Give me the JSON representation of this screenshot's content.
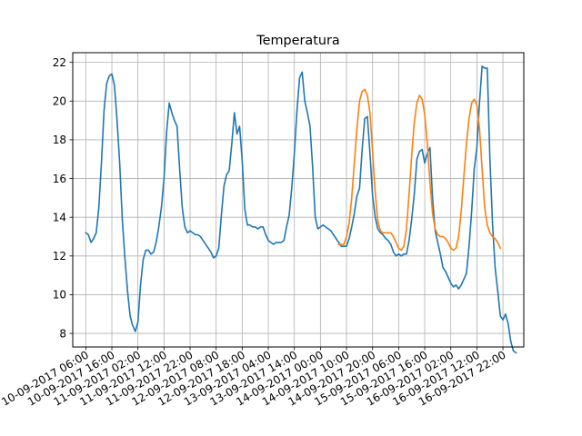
{
  "chart_data": {
    "type": "line",
    "title": "Temperatura",
    "xlabel": "",
    "ylabel": "",
    "grid": true,
    "x_tick_labels": [
      "10-09-2017 06:00",
      "10-09-2017 16:00",
      "11-09-2017 02:00",
      "11-09-2017 12:00",
      "11-09-2017 22:00",
      "12-09-2017 08:00",
      "12-09-2017 18:00",
      "13-09-2017 04:00",
      "13-09-2017 14:00",
      "14-09-2017 00:00",
      "14-09-2017 10:00",
      "14-09-2017 20:00",
      "15-09-2017 06:00",
      "15-09-2017 16:00",
      "16-09-2017 02:00",
      "16-09-2017 12:00",
      "16-09-2017 22:00"
    ],
    "y_ticks": [
      8,
      10,
      12,
      14,
      16,
      18,
      20,
      22
    ],
    "xlim": [
      "10-09-2017 01:00",
      "17-09-2017 06:00"
    ],
    "ylim": [
      7.3,
      22.5
    ],
    "series": [
      {
        "color": "#1f77b4",
        "points": [
          [
            "10-09-2017 06:00",
            13.2
          ],
          [
            "10-09-2017 07:00",
            13.1
          ],
          [
            "10-09-2017 08:00",
            12.7
          ],
          [
            "10-09-2017 09:00",
            12.9
          ],
          [
            "10-09-2017 10:00",
            13.2
          ],
          [
            "10-09-2017 11:00",
            14.5
          ],
          [
            "10-09-2017 12:00",
            16.8
          ],
          [
            "10-09-2017 13:00",
            19.5
          ],
          [
            "10-09-2017 14:00",
            20.9
          ],
          [
            "10-09-2017 15:00",
            21.3
          ],
          [
            "10-09-2017 16:00",
            21.4
          ],
          [
            "10-09-2017 17:00",
            20.8
          ],
          [
            "10-09-2017 18:00",
            19.0
          ],
          [
            "10-09-2017 19:00",
            16.8
          ],
          [
            "10-09-2017 20:00",
            13.9
          ],
          [
            "10-09-2017 21:00",
            11.9
          ],
          [
            "10-09-2017 22:00",
            10.2
          ],
          [
            "10-09-2017 23:00",
            8.9
          ],
          [
            "11-09-2017 00:00",
            8.4
          ],
          [
            "11-09-2017 01:00",
            8.1
          ],
          [
            "11-09-2017 02:00",
            8.6
          ],
          [
            "11-09-2017 03:00",
            10.5
          ],
          [
            "11-09-2017 04:00",
            11.8
          ],
          [
            "11-09-2017 05:00",
            12.3
          ],
          [
            "11-09-2017 06:00",
            12.3
          ],
          [
            "11-09-2017 07:00",
            12.1
          ],
          [
            "11-09-2017 08:00",
            12.2
          ],
          [
            "11-09-2017 09:00",
            12.7
          ],
          [
            "11-09-2017 10:00",
            13.5
          ],
          [
            "11-09-2017 11:00",
            14.5
          ],
          [
            "11-09-2017 12:00",
            16.0
          ],
          [
            "11-09-2017 13:00",
            18.4
          ],
          [
            "11-09-2017 14:00",
            19.9
          ],
          [
            "11-09-2017 15:00",
            19.4
          ],
          [
            "11-09-2017 16:00",
            19.0
          ],
          [
            "11-09-2017 17:00",
            18.7
          ],
          [
            "11-09-2017 18:00",
            16.5
          ],
          [
            "11-09-2017 19:00",
            14.5
          ],
          [
            "11-09-2017 20:00",
            13.5
          ],
          [
            "11-09-2017 21:00",
            13.2
          ],
          [
            "11-09-2017 22:00",
            13.3
          ],
          [
            "11-09-2017 23:00",
            13.2
          ],
          [
            "12-09-2017 00:00",
            13.1
          ],
          [
            "12-09-2017 01:00",
            13.1
          ],
          [
            "12-09-2017 02:00",
            13.0
          ],
          [
            "12-09-2017 03:00",
            12.8
          ],
          [
            "12-09-2017 04:00",
            12.6
          ],
          [
            "12-09-2017 05:00",
            12.4
          ],
          [
            "12-09-2017 06:00",
            12.2
          ],
          [
            "12-09-2017 07:00",
            11.9
          ],
          [
            "12-09-2017 08:00",
            12.0
          ],
          [
            "12-09-2017 09:00",
            12.4
          ],
          [
            "12-09-2017 10:00",
            14.1
          ],
          [
            "12-09-2017 11:00",
            15.6
          ],
          [
            "12-09-2017 12:00",
            16.2
          ],
          [
            "12-09-2017 13:00",
            16.4
          ],
          [
            "12-09-2017 14:00",
            17.8
          ],
          [
            "12-09-2017 15:00",
            19.4
          ],
          [
            "12-09-2017 16:00",
            18.3
          ],
          [
            "12-09-2017 17:00",
            18.7
          ],
          [
            "12-09-2017 18:00",
            16.9
          ],
          [
            "12-09-2017 19:00",
            14.4
          ],
          [
            "12-09-2017 20:00",
            13.6
          ],
          [
            "12-09-2017 21:00",
            13.6
          ],
          [
            "12-09-2017 22:00",
            13.5
          ],
          [
            "12-09-2017 23:00",
            13.5
          ],
          [
            "13-09-2017 00:00",
            13.4
          ],
          [
            "13-09-2017 01:00",
            13.5
          ],
          [
            "13-09-2017 02:00",
            13.5
          ],
          [
            "13-09-2017 03:00",
            13.1
          ],
          [
            "13-09-2017 04:00",
            12.8
          ],
          [
            "13-09-2017 05:00",
            12.7
          ],
          [
            "13-09-2017 06:00",
            12.6
          ],
          [
            "13-09-2017 07:00",
            12.7
          ],
          [
            "13-09-2017 08:00",
            12.7
          ],
          [
            "13-09-2017 09:00",
            12.7
          ],
          [
            "13-09-2017 10:00",
            12.8
          ],
          [
            "13-09-2017 11:00",
            13.5
          ],
          [
            "13-09-2017 12:00",
            14.1
          ],
          [
            "13-09-2017 13:00",
            15.5
          ],
          [
            "13-09-2017 14:00",
            17.3
          ],
          [
            "13-09-2017 15:00",
            19.5
          ],
          [
            "13-09-2017 16:00",
            21.2
          ],
          [
            "13-09-2017 17:00",
            21.5
          ],
          [
            "13-09-2017 18:00",
            20.0
          ],
          [
            "13-09-2017 19:00",
            19.4
          ],
          [
            "13-09-2017 20:00",
            18.7
          ],
          [
            "13-09-2017 21:00",
            16.6
          ],
          [
            "13-09-2017 22:00",
            14.0
          ],
          [
            "13-09-2017 23:00",
            13.4
          ],
          [
            "14-09-2017 00:00",
            13.5
          ],
          [
            "14-09-2017 01:00",
            13.6
          ],
          [
            "14-09-2017 02:00",
            13.5
          ],
          [
            "14-09-2017 03:00",
            13.4
          ],
          [
            "14-09-2017 04:00",
            13.3
          ],
          [
            "14-09-2017 05:00",
            13.1
          ],
          [
            "14-09-2017 06:00",
            12.9
          ],
          [
            "14-09-2017 07:00",
            12.7
          ],
          [
            "14-09-2017 08:00",
            12.5
          ],
          [
            "14-09-2017 09:00",
            12.5
          ],
          [
            "14-09-2017 10:00",
            12.5
          ],
          [
            "14-09-2017 11:00",
            12.9
          ],
          [
            "14-09-2017 12:00",
            13.5
          ],
          [
            "14-09-2017 13:00",
            14.2
          ],
          [
            "14-09-2017 14:00",
            15.1
          ],
          [
            "14-09-2017 15:00",
            15.5
          ],
          [
            "14-09-2017 16:00",
            17.5
          ],
          [
            "14-09-2017 17:00",
            19.1
          ],
          [
            "14-09-2017 18:00",
            19.2
          ],
          [
            "14-09-2017 19:00",
            17.3
          ],
          [
            "14-09-2017 20:00",
            15.1
          ],
          [
            "14-09-2017 21:00",
            14.0
          ],
          [
            "14-09-2017 22:00",
            13.4
          ],
          [
            "14-09-2017 23:00",
            13.2
          ],
          [
            "15-09-2017 00:00",
            13.1
          ],
          [
            "15-09-2017 01:00",
            12.9
          ],
          [
            "15-09-2017 02:00",
            12.8
          ],
          [
            "15-09-2017 03:00",
            12.6
          ],
          [
            "15-09-2017 04:00",
            12.2
          ],
          [
            "15-09-2017 05:00",
            12.0
          ],
          [
            "15-09-2017 06:00",
            12.1
          ],
          [
            "15-09-2017 07:00",
            12.0
          ],
          [
            "15-09-2017 08:00",
            12.1
          ],
          [
            "15-09-2017 09:00",
            12.1
          ],
          [
            "15-09-2017 10:00",
            12.8
          ],
          [
            "15-09-2017 11:00",
            13.9
          ],
          [
            "15-09-2017 12:00",
            15.2
          ],
          [
            "15-09-2017 13:00",
            17.0
          ],
          [
            "15-09-2017 14:00",
            17.4
          ],
          [
            "15-09-2017 15:00",
            17.5
          ],
          [
            "15-09-2017 16:00",
            16.8
          ],
          [
            "15-09-2017 17:00",
            17.3
          ],
          [
            "15-09-2017 18:00",
            17.6
          ],
          [
            "15-09-2017 19:00",
            15.0
          ],
          [
            "15-09-2017 20:00",
            13.3
          ],
          [
            "15-09-2017 21:00",
            12.7
          ],
          [
            "15-09-2017 22:00",
            12.1
          ],
          [
            "15-09-2017 23:00",
            11.4
          ],
          [
            "16-09-2017 00:00",
            11.2
          ],
          [
            "16-09-2017 01:00",
            10.9
          ],
          [
            "16-09-2017 02:00",
            10.6
          ],
          [
            "16-09-2017 03:00",
            10.4
          ],
          [
            "16-09-2017 04:00",
            10.5
          ],
          [
            "16-09-2017 05:00",
            10.3
          ],
          [
            "16-09-2017 06:00",
            10.5
          ],
          [
            "16-09-2017 07:00",
            10.8
          ],
          [
            "16-09-2017 08:00",
            11.1
          ],
          [
            "16-09-2017 09:00",
            12.5
          ],
          [
            "16-09-2017 10:00",
            14.3
          ],
          [
            "16-09-2017 11:00",
            16.5
          ],
          [
            "16-09-2017 12:00",
            17.6
          ],
          [
            "16-09-2017 13:00",
            19.9
          ],
          [
            "16-09-2017 14:00",
            21.8
          ],
          [
            "16-09-2017 15:00",
            21.7
          ],
          [
            "16-09-2017 16:00",
            21.7
          ],
          [
            "16-09-2017 17:00",
            17.0
          ],
          [
            "16-09-2017 18:00",
            13.7
          ],
          [
            "16-09-2017 19:00",
            11.4
          ],
          [
            "16-09-2017 20:00",
            10.2
          ],
          [
            "16-09-2017 21:00",
            8.9
          ],
          [
            "16-09-2017 22:00",
            8.7
          ],
          [
            "16-09-2017 23:00",
            9.0
          ],
          [
            "17-09-2017 00:00",
            8.5
          ],
          [
            "17-09-2017 01:00",
            7.6
          ],
          [
            "17-09-2017 02:00",
            7.1
          ],
          [
            "17-09-2017 03:00",
            7.0
          ]
        ]
      },
      {
        "color": "#ff7f0e",
        "points": [
          [
            "14-09-2017 07:00",
            12.6
          ],
          [
            "14-09-2017 08:00",
            12.6
          ],
          [
            "14-09-2017 09:00",
            12.6
          ],
          [
            "14-09-2017 10:00",
            13.0
          ],
          [
            "14-09-2017 11:00",
            13.7
          ],
          [
            "14-09-2017 12:00",
            15.0
          ],
          [
            "14-09-2017 13:00",
            16.8
          ],
          [
            "14-09-2017 14:00",
            18.6
          ],
          [
            "14-09-2017 15:00",
            20.0
          ],
          [
            "14-09-2017 16:00",
            20.5
          ],
          [
            "14-09-2017 17:00",
            20.6
          ],
          [
            "14-09-2017 18:00",
            20.3
          ],
          [
            "14-09-2017 19:00",
            19.4
          ],
          [
            "14-09-2017 20:00",
            17.4
          ],
          [
            "14-09-2017 21:00",
            15.3
          ],
          [
            "14-09-2017 22:00",
            13.8
          ],
          [
            "14-09-2017 23:00",
            13.3
          ],
          [
            "15-09-2017 00:00",
            13.2
          ],
          [
            "15-09-2017 01:00",
            13.2
          ],
          [
            "15-09-2017 02:00",
            13.2
          ],
          [
            "15-09-2017 03:00",
            13.2
          ],
          [
            "15-09-2017 04:00",
            13.0
          ],
          [
            "15-09-2017 05:00",
            12.7
          ],
          [
            "15-09-2017 06:00",
            12.4
          ],
          [
            "15-09-2017 07:00",
            12.3
          ],
          [
            "15-09-2017 08:00",
            12.5
          ],
          [
            "15-09-2017 09:00",
            13.4
          ],
          [
            "15-09-2017 10:00",
            15.2
          ],
          [
            "15-09-2017 11:00",
            17.2
          ],
          [
            "15-09-2017 12:00",
            18.9
          ],
          [
            "15-09-2017 13:00",
            19.9
          ],
          [
            "15-09-2017 14:00",
            20.3
          ],
          [
            "15-09-2017 15:00",
            20.1
          ],
          [
            "15-09-2017 16:00",
            19.3
          ],
          [
            "15-09-2017 17:00",
            17.8
          ],
          [
            "15-09-2017 18:00",
            15.8
          ],
          [
            "15-09-2017 19:00",
            14.2
          ],
          [
            "15-09-2017 20:00",
            13.4
          ],
          [
            "15-09-2017 21:00",
            13.1
          ],
          [
            "15-09-2017 22:00",
            13.0
          ],
          [
            "15-09-2017 23:00",
            13.0
          ],
          [
            "16-09-2017 00:00",
            12.9
          ],
          [
            "16-09-2017 01:00",
            12.7
          ],
          [
            "16-09-2017 02:00",
            12.4
          ],
          [
            "16-09-2017 03:00",
            12.3
          ],
          [
            "16-09-2017 04:00",
            12.4
          ],
          [
            "16-09-2017 05:00",
            13.0
          ],
          [
            "16-09-2017 06:00",
            14.3
          ],
          [
            "16-09-2017 07:00",
            16.1
          ],
          [
            "16-09-2017 08:00",
            17.8
          ],
          [
            "16-09-2017 09:00",
            19.1
          ],
          [
            "16-09-2017 10:00",
            19.9
          ],
          [
            "16-09-2017 11:00",
            20.1
          ],
          [
            "16-09-2017 12:00",
            19.8
          ],
          [
            "16-09-2017 13:00",
            18.6
          ],
          [
            "16-09-2017 14:00",
            16.5
          ],
          [
            "16-09-2017 15:00",
            14.5
          ],
          [
            "16-09-2017 16:00",
            13.6
          ],
          [
            "16-09-2017 17:00",
            13.2
          ],
          [
            "16-09-2017 18:00",
            13.0
          ],
          [
            "16-09-2017 19:00",
            12.9
          ],
          [
            "16-09-2017 20:00",
            12.7
          ],
          [
            "16-09-2017 21:00",
            12.4
          ]
        ]
      }
    ]
  }
}
